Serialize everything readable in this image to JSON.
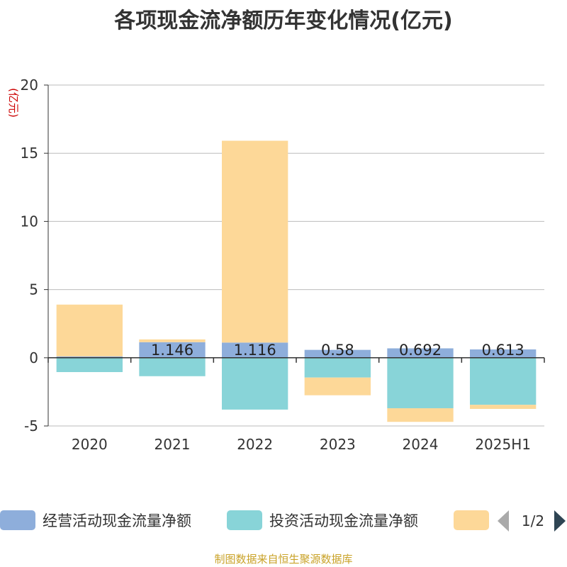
{
  "page": {
    "source": "制图数据来自恒生聚源数据库",
    "legend_page": "1/2"
  },
  "colors": {
    "background": "#ffffff",
    "grid": "#bbbbbb",
    "axis": "#333333",
    "unit": "#cc0000",
    "source": "#c9a227",
    "page_arrow_active": "#2f4554",
    "page_arrow_inactive": "#aaaaaa"
  },
  "icons": {
    "legend_prev": "triangle-left-icon",
    "legend_next": "triangle-right-icon"
  },
  "chart_data": {
    "type": "bar",
    "stacked": true,
    "title": "各项现金流净额历年变化情况(亿元)",
    "ylabel": "(亿元)",
    "ylim": [
      -5,
      20
    ],
    "yticks": [
      -5,
      0,
      5,
      10,
      15,
      20
    ],
    "grid": true,
    "legend_position": "bottom",
    "categories": [
      "2020",
      "2021",
      "2022",
      "2023",
      "2024",
      "2025H1"
    ],
    "series": [
      {
        "name": "经营活动现金流量净额",
        "color": "#8eaedb",
        "values": [
          0.1,
          1.146,
          1.116,
          0.58,
          0.692,
          0.613
        ],
        "labels": [
          "",
          "1.146",
          "1.116",
          "0.58",
          "0.692",
          "0.613"
        ]
      },
      {
        "name": "投资活动现金流量净额",
        "color": "#88d4d8",
        "values": [
          -1.05,
          -1.35,
          -3.8,
          -1.45,
          -3.7,
          -3.45
        ]
      },
      {
        "name": "",
        "color": "#fdd898",
        "values": [
          3.8,
          0.2,
          14.8,
          -1.3,
          -1.0,
          -0.3
        ]
      }
    ]
  }
}
